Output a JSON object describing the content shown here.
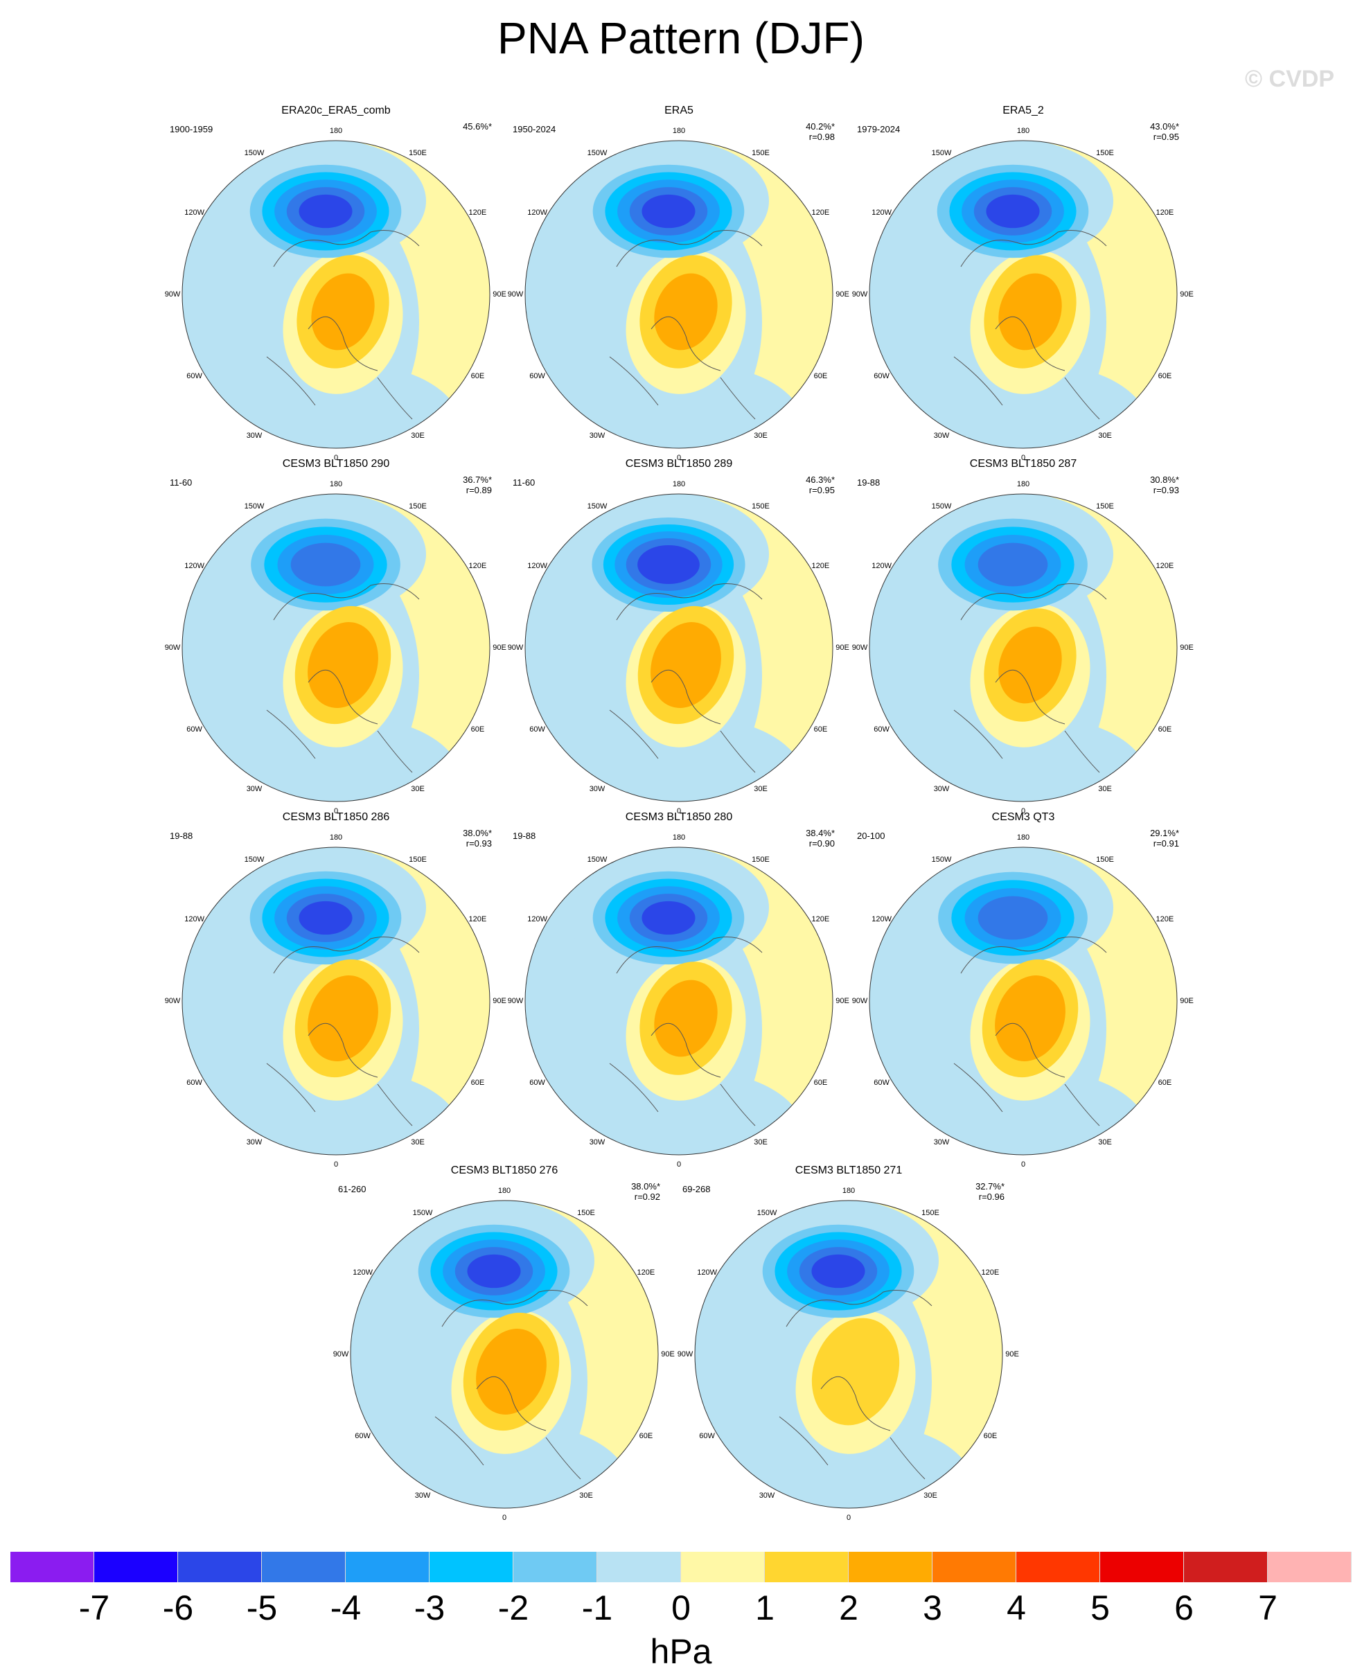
{
  "title": "PNA Pattern (DJF)",
  "watermark": "© CVDP",
  "units": "hPa",
  "colors": {
    "levels": [
      "#8B1CF0",
      "#1B00FF",
      "#2B46E8",
      "#3278E8",
      "#1E9EF8",
      "#00C3FF",
      "#6FCAF3",
      "#B8E2F3",
      "#FFF8A6",
      "#FFD630",
      "#FFAB02",
      "#FF7A03",
      "#FF3700",
      "#EC0000",
      "#D01E1E",
      "#FFB3B3"
    ]
  },
  "colorbar_ticks": [
    "-7",
    "-6",
    "-5",
    "-4",
    "-3",
    "-2",
    "-1",
    "0",
    "1",
    "2",
    "3",
    "4",
    "5",
    "6",
    "7"
  ],
  "lon_labels": [
    "180",
    "150E",
    "120E",
    "90E",
    "60E",
    "30E",
    "0",
    "30W",
    "60W",
    "90W",
    "120W",
    "150W"
  ],
  "chart_data": {
    "type": "heatmap",
    "projection": "polar-stereographic, Northern Hemisphere",
    "units": "hPa",
    "levels": [
      -7,
      -6,
      -5,
      -4,
      -3,
      -2,
      -1,
      0,
      1,
      2,
      3,
      4,
      5,
      6,
      7
    ],
    "panels": [
      {
        "title": "ERA20c_ERA5_comb",
        "period": "1900-1959",
        "pct": "45.6%*",
        "r": "",
        "min": -5.5,
        "max": 2.5
      },
      {
        "title": "ERA5",
        "period": "1950-2024",
        "pct": "40.2%*",
        "r": "r=0.98",
        "min": -5.5,
        "max": 2.5
      },
      {
        "title": "ERA5_2",
        "period": "1979-2024",
        "pct": "43.0%*",
        "r": "r=0.95",
        "min": -5.5,
        "max": 2.5
      },
      {
        "title": "CESM3 BLT1850 290",
        "period": "11-60",
        "pct": "36.7%*",
        "r": "r=0.89",
        "min": -5,
        "max": 3
      },
      {
        "title": "CESM3 BLT1850 289",
        "period": "11-60",
        "pct": "46.3%*",
        "r": "r=0.95",
        "min": -6,
        "max": 3
      },
      {
        "title": "CESM3 BLT1850 287",
        "period": "19-88",
        "pct": "30.8%*",
        "r": "r=0.93",
        "min": -5,
        "max": 2.5
      },
      {
        "title": "CESM3 BLT1850 286",
        "period": "19-88",
        "pct": "38.0%*",
        "r": "r=0.93",
        "min": -5.5,
        "max": 3
      },
      {
        "title": "CESM3 BLT1850 280",
        "period": "19-88",
        "pct": "38.4%*",
        "r": "r=0.90",
        "min": -5.5,
        "max": 2.5
      },
      {
        "title": "CESM3 QT3",
        "period": "20-100",
        "pct": "29.1%*",
        "r": "r=0.91",
        "min": -5,
        "max": 3
      },
      {
        "title": "CESM3 BLT1850 276",
        "period": "61-260",
        "pct": "38.0%*",
        "r": "r=0.92",
        "min": -5.5,
        "max": 3
      },
      {
        "title": "CESM3 BLT1850 271",
        "period": "69-268",
        "pct": "32.7%*",
        "r": "r=0.96",
        "min": -5.5,
        "max": 2
      }
    ]
  }
}
